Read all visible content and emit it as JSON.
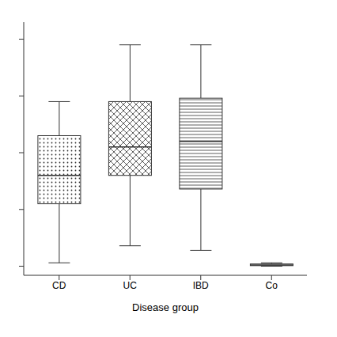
{
  "chart_data": {
    "type": "box",
    "categories": [
      "CD",
      "UC",
      "IBD",
      "Co"
    ],
    "whislo": [
      3,
      18,
      14,
      0
    ],
    "q1": [
      55,
      80,
      68,
      0.5
    ],
    "med": [
      80,
      105,
      110,
      1
    ],
    "q3": [
      115,
      145,
      148,
      2
    ],
    "whishi": [
      145,
      195,
      195,
      3
    ],
    "xlabel": "Disease group",
    "ylim": [
      -8,
      215
    ],
    "yticks": [
      0,
      50,
      100,
      150,
      200
    ],
    "tick_labels": "x",
    "color": "#333333"
  }
}
